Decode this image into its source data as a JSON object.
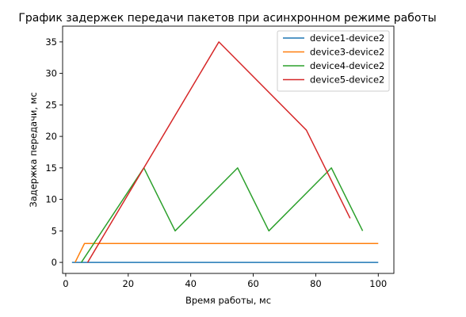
{
  "chart_data": {
    "type": "line",
    "title": "График задержек передачи пакетов при асинхронном режиме работы",
    "xlabel": "Время работы, мс",
    "ylabel": "Задержка передачи, мс",
    "xlim": [
      -1,
      105
    ],
    "ylim": [
      -1.75,
      37.5
    ],
    "xticks": [
      0,
      20,
      40,
      60,
      80,
      100
    ],
    "yticks": [
      0,
      5,
      10,
      15,
      20,
      25,
      30,
      35
    ],
    "grid": false,
    "legend_position": "top-right",
    "series": [
      {
        "name": "device1-device2",
        "color": "#1f77b4",
        "x": [
          2,
          100
        ],
        "y": [
          0,
          0
        ]
      },
      {
        "name": "device3-device2",
        "color": "#ff7f0e",
        "x": [
          3,
          6,
          10,
          100
        ],
        "y": [
          0,
          3,
          3,
          3
        ]
      },
      {
        "name": "device4-device2",
        "color": "#2ca02c",
        "x": [
          5,
          25,
          35,
          55,
          65,
          85,
          95
        ],
        "y": [
          0,
          15,
          5,
          15,
          5,
          15,
          5
        ]
      },
      {
        "name": "device5-device2",
        "color": "#d62728",
        "x": [
          7,
          49,
          77,
          91
        ],
        "y": [
          0,
          35,
          21,
          7
        ]
      }
    ]
  }
}
